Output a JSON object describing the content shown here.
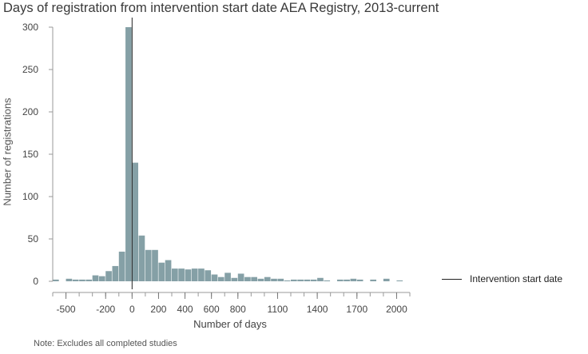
{
  "chart_data": {
    "type": "bar",
    "title": "Days of registration from intervention start date AEA Registry, 2013-current",
    "xlabel": "Number of days",
    "ylabel": "Number of registrations",
    "note": "Note: Excludes all completed studies",
    "legend": {
      "label": "Intervention start date",
      "placement": "right"
    },
    "reference_line": {
      "x": 0,
      "label": "Intervention start date"
    },
    "xlim": [
      -600,
      2100
    ],
    "ylim": [
      0,
      300
    ],
    "bin_width": 50,
    "x_ticks": [
      -500,
      -200,
      0,
      200,
      400,
      600,
      800,
      1100,
      1400,
      1700,
      2000
    ],
    "x_tick_labels": [
      "-500",
      "-200",
      "0",
      "200",
      "400",
      "600",
      "800",
      "1100",
      "1400",
      "1700",
      "2000"
    ],
    "y_ticks": [
      0,
      50,
      100,
      150,
      200,
      250,
      300
    ],
    "y_tick_labels": [
      "0",
      "50",
      "100",
      "150",
      "200",
      "250",
      "300"
    ],
    "bins": [
      {
        "x": -600,
        "value": 2
      },
      {
        "x": -550,
        "value": 0
      },
      {
        "x": -500,
        "value": 3
      },
      {
        "x": -450,
        "value": 2
      },
      {
        "x": -400,
        "value": 2
      },
      {
        "x": -350,
        "value": 2
      },
      {
        "x": -300,
        "value": 7
      },
      {
        "x": -250,
        "value": 6
      },
      {
        "x": -200,
        "value": 12
      },
      {
        "x": -150,
        "value": 18
      },
      {
        "x": -100,
        "value": 35
      },
      {
        "x": -50,
        "value": 300
      },
      {
        "x": 0,
        "value": 140
      },
      {
        "x": 50,
        "value": 54
      },
      {
        "x": 100,
        "value": 37
      },
      {
        "x": 150,
        "value": 37
      },
      {
        "x": 200,
        "value": 22
      },
      {
        "x": 250,
        "value": 25
      },
      {
        "x": 300,
        "value": 15
      },
      {
        "x": 350,
        "value": 15
      },
      {
        "x": 400,
        "value": 14
      },
      {
        "x": 450,
        "value": 15
      },
      {
        "x": 500,
        "value": 15
      },
      {
        "x": 550,
        "value": 13
      },
      {
        "x": 600,
        "value": 8
      },
      {
        "x": 650,
        "value": 5
      },
      {
        "x": 700,
        "value": 10
      },
      {
        "x": 750,
        "value": 4
      },
      {
        "x": 800,
        "value": 9
      },
      {
        "x": 850,
        "value": 5
      },
      {
        "x": 900,
        "value": 5
      },
      {
        "x": 950,
        "value": 3
      },
      {
        "x": 1000,
        "value": 5
      },
      {
        "x": 1050,
        "value": 3
      },
      {
        "x": 1100,
        "value": 3
      },
      {
        "x": 1150,
        "value": 1
      },
      {
        "x": 1200,
        "value": 2
      },
      {
        "x": 1250,
        "value": 2
      },
      {
        "x": 1300,
        "value": 2
      },
      {
        "x": 1350,
        "value": 2
      },
      {
        "x": 1400,
        "value": 4
      },
      {
        "x": 1450,
        "value": 1
      },
      {
        "x": 1500,
        "value": 0
      },
      {
        "x": 1550,
        "value": 2
      },
      {
        "x": 1600,
        "value": 2
      },
      {
        "x": 1650,
        "value": 3
      },
      {
        "x": 1700,
        "value": 2
      },
      {
        "x": 1750,
        "value": 0
      },
      {
        "x": 1800,
        "value": 2
      },
      {
        "x": 1850,
        "value": 0
      },
      {
        "x": 1900,
        "value": 3
      },
      {
        "x": 1950,
        "value": 0
      },
      {
        "x": 2000,
        "value": 1
      }
    ],
    "colors": {
      "bar": "#85a0a6",
      "reference_line": "#222222",
      "axis": "#999999"
    },
    "grid": false
  }
}
